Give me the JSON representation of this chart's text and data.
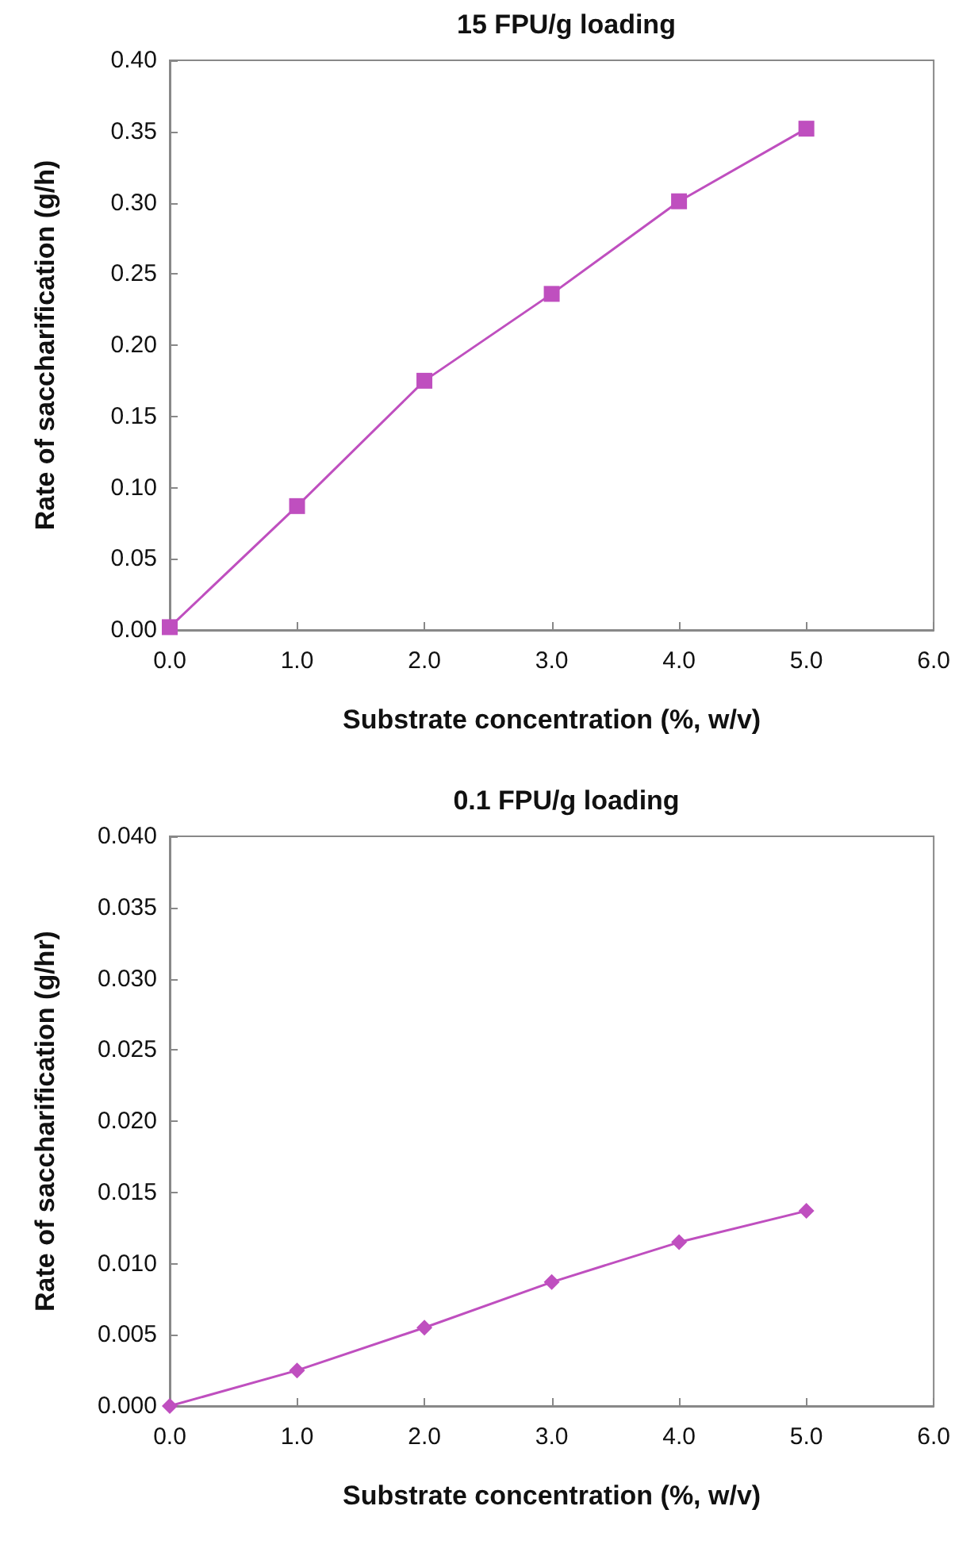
{
  "chart_data": [
    {
      "type": "line",
      "title": "15 FPU/g loading",
      "xlabel": "Substrate concentration (%, w/v)",
      "ylabel": "Rate of saccharification (g/h)",
      "marker": "square",
      "grid": false,
      "x": [
        0,
        1,
        2,
        3,
        4,
        5
      ],
      "series": [
        {
          "color": "#bf4fbf",
          "values": [
            0.002,
            0.087,
            0.175,
            0.236,
            0.301,
            0.352
          ]
        }
      ],
      "xlim": [
        0,
        6
      ],
      "xticks": [
        {
          "value": 0,
          "label": "0.0"
        },
        {
          "value": 1,
          "label": "1.0"
        },
        {
          "value": 2,
          "label": "2.0"
        },
        {
          "value": 3,
          "label": "3.0"
        },
        {
          "value": 4,
          "label": "4.0"
        },
        {
          "value": 5,
          "label": "5.0"
        },
        {
          "value": 6,
          "label": "6.0"
        }
      ],
      "ylim": [
        0,
        0.4
      ],
      "yticks": [
        {
          "value": 0,
          "label": "0.00"
        },
        {
          "value": 0.05,
          "label": "0.05"
        },
        {
          "value": 0.1,
          "label": "0.10"
        },
        {
          "value": 0.15,
          "label": "0.15"
        },
        {
          "value": 0.2,
          "label": "0.20"
        },
        {
          "value": 0.25,
          "label": "0.25"
        },
        {
          "value": 0.3,
          "label": "0.30"
        },
        {
          "value": 0.35,
          "label": "0.35"
        },
        {
          "value": 0.4,
          "label": "0.40"
        }
      ]
    },
    {
      "type": "line",
      "title": "0.1 FPU/g loading",
      "xlabel": "Substrate concentration (%, w/v)",
      "ylabel": "Rate of saccharification (g/hr)",
      "marker": "diamond",
      "grid": false,
      "x": [
        0,
        1,
        2,
        3,
        4,
        5
      ],
      "series": [
        {
          "color": "#bf4fbf",
          "values": [
            0.0,
            0.0025,
            0.0055,
            0.0087,
            0.0115,
            0.0137
          ]
        }
      ],
      "xlim": [
        0,
        6
      ],
      "xticks": [
        {
          "value": 0,
          "label": "0.0"
        },
        {
          "value": 1,
          "label": "1.0"
        },
        {
          "value": 2,
          "label": "2.0"
        },
        {
          "value": 3,
          "label": "3.0"
        },
        {
          "value": 4,
          "label": "4.0"
        },
        {
          "value": 5,
          "label": "5.0"
        },
        {
          "value": 6,
          "label": "6.0"
        }
      ],
      "ylim": [
        0,
        0.04
      ],
      "yticks": [
        {
          "value": 0,
          "label": "0.000"
        },
        {
          "value": 0.005,
          "label": "0.005"
        },
        {
          "value": 0.01,
          "label": "0.010"
        },
        {
          "value": 0.015,
          "label": "0.015"
        },
        {
          "value": 0.02,
          "label": "0.020"
        },
        {
          "value": 0.025,
          "label": "0.025"
        },
        {
          "value": 0.03,
          "label": "0.030"
        },
        {
          "value": 0.035,
          "label": "0.035"
        },
        {
          "value": 0.04,
          "label": "0.040"
        }
      ]
    }
  ]
}
